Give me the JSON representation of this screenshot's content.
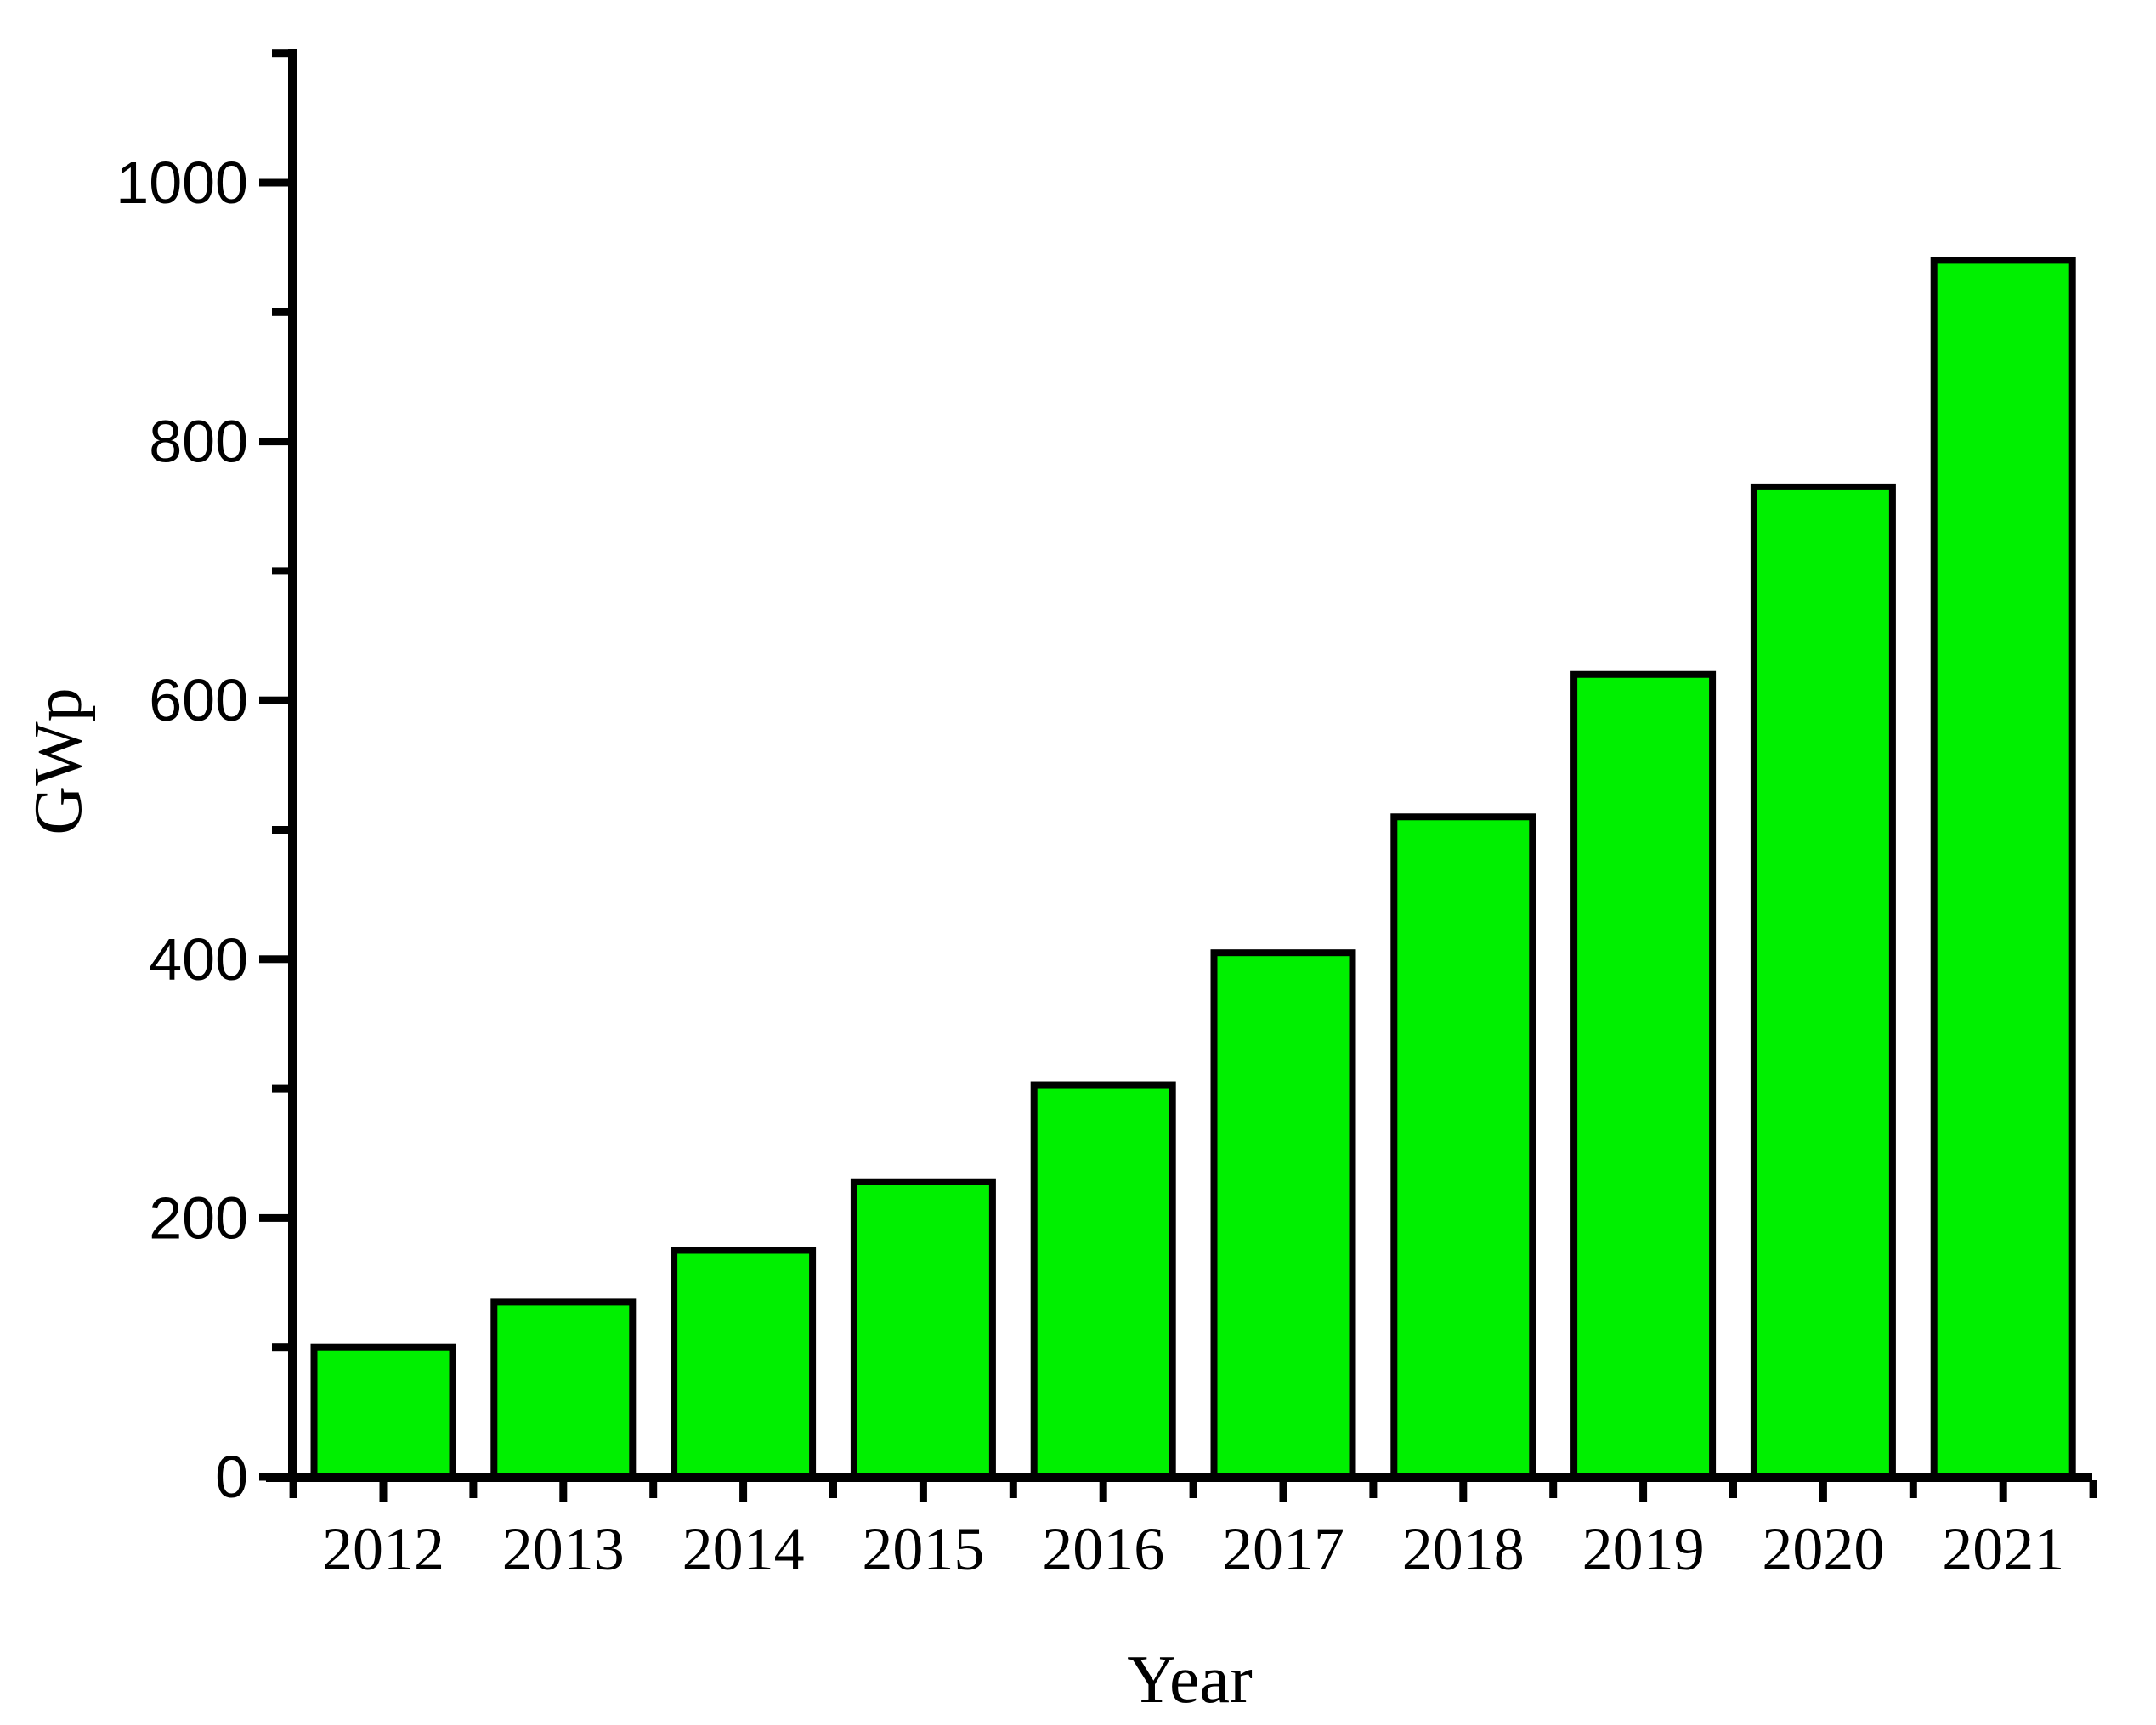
{
  "figure": {
    "background": "#FFFFFF"
  },
  "chart_data": {
    "type": "bar",
    "categories": [
      "2012",
      "2013",
      "2014",
      "2015",
      "2016",
      "2017",
      "2018",
      "2019",
      "2020",
      "2021"
    ],
    "values": [
      100,
      135,
      175,
      228,
      303,
      405,
      510,
      620,
      765,
      940
    ],
    "title": "",
    "xlabel": "Year",
    "ylabel": "GWp",
    "ylim": [
      0,
      1100
    ],
    "y_major_ticks": [
      0,
      200,
      400,
      600,
      800,
      1000
    ],
    "y_minor_ticks": [
      100,
      300,
      500,
      700,
      900,
      1100
    ],
    "grid": "off",
    "legend": "none",
    "bar_fill": "#00F000",
    "bar_stroke": "#000000",
    "axis_color": "#000000"
  }
}
